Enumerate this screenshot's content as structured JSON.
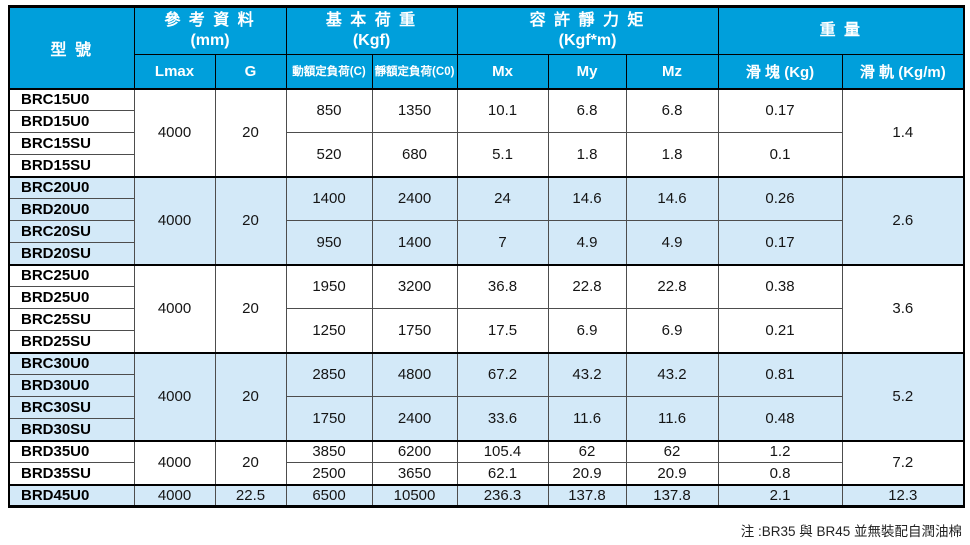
{
  "colors": {
    "header_bg": "#009fdb",
    "shaded_bg": "#d3e9f8",
    "border_dark": "#000000",
    "border_thin": "#4d4d4d"
  },
  "table": {
    "header": {
      "model": "型 號",
      "groups": [
        {
          "label": "參 考 資 料",
          "unit": "(mm)",
          "cols": [
            "Lmax",
            "G"
          ]
        },
        {
          "label": "基 本 荷 重",
          "unit": "(Kgf)",
          "cols": [
            "動額定負荷(C)",
            "靜額定負荷(C0)"
          ]
        },
        {
          "label": "容 許 靜 力 矩",
          "unit": "(Kgf*m)",
          "cols": [
            "Mx",
            "My",
            "Mz"
          ]
        },
        {
          "label": "重 量",
          "unit": "",
          "cols": [
            "滑 塊 (Kg)",
            "滑 軌 (Kg/m)"
          ]
        }
      ]
    },
    "groups": [
      {
        "models": [
          "BRC15U0",
          "BRD15U0",
          "BRC15SU",
          "BRD15SU"
        ],
        "lmax": "4000",
        "g": "20",
        "pairs": [
          {
            "c": "850",
            "c0": "1350",
            "mx": "10.1",
            "my": "6.8",
            "mz": "6.8",
            "slider": "0.17"
          },
          {
            "c": "520",
            "c0": "680",
            "mx": "5.1",
            "my": "1.8",
            "mz": "1.8",
            "slider": "0.1"
          }
        ],
        "rail": "1.4",
        "shaded": false
      },
      {
        "models": [
          "BRC20U0",
          "BRD20U0",
          "BRC20SU",
          "BRD20SU"
        ],
        "lmax": "4000",
        "g": "20",
        "pairs": [
          {
            "c": "1400",
            "c0": "2400",
            "mx": "24",
            "my": "14.6",
            "mz": "14.6",
            "slider": "0.26"
          },
          {
            "c": "950",
            "c0": "1400",
            "mx": "7",
            "my": "4.9",
            "mz": "4.9",
            "slider": "0.17"
          }
        ],
        "rail": "2.6",
        "shaded": true
      },
      {
        "models": [
          "BRC25U0",
          "BRD25U0",
          "BRC25SU",
          "BRD25SU"
        ],
        "lmax": "4000",
        "g": "20",
        "pairs": [
          {
            "c": "1950",
            "c0": "3200",
            "mx": "36.8",
            "my": "22.8",
            "mz": "22.8",
            "slider": "0.38"
          },
          {
            "c": "1250",
            "c0": "1750",
            "mx": "17.5",
            "my": "6.9",
            "mz": "6.9",
            "slider": "0.21"
          }
        ],
        "rail": "3.6",
        "shaded": false
      },
      {
        "models": [
          "BRC30U0",
          "BRD30U0",
          "BRC30SU",
          "BRD30SU"
        ],
        "lmax": "4000",
        "g": "20",
        "pairs": [
          {
            "c": "2850",
            "c0": "4800",
            "mx": "67.2",
            "my": "43.2",
            "mz": "43.2",
            "slider": "0.81"
          },
          {
            "c": "1750",
            "c0": "2400",
            "mx": "33.6",
            "my": "11.6",
            "mz": "11.6",
            "slider": "0.48"
          }
        ],
        "rail": "5.2",
        "shaded": true
      },
      {
        "models": [
          "BRD35U0",
          "BRD35SU"
        ],
        "lmax": "4000",
        "g": "20",
        "pairs": [
          {
            "c": "3850",
            "c0": "6200",
            "mx": "105.4",
            "my": "62",
            "mz": "62",
            "slider": "1.2"
          },
          {
            "c": "2500",
            "c0": "3650",
            "mx": "62.1",
            "my": "20.9",
            "mz": "20.9",
            "slider": "0.8"
          }
        ],
        "rail": "7.2",
        "shaded": false
      },
      {
        "models": [
          "BRD45U0"
        ],
        "lmax": "4000",
        "g": "22.5",
        "pairs": [
          {
            "c": "6500",
            "c0": "10500",
            "mx": "236.3",
            "my": "137.8",
            "mz": "137.8",
            "slider": "2.1"
          }
        ],
        "rail": "12.3",
        "shaded": true
      }
    ],
    "note": "注 :BR35 與 BR45 並無裝配自潤油棉"
  }
}
